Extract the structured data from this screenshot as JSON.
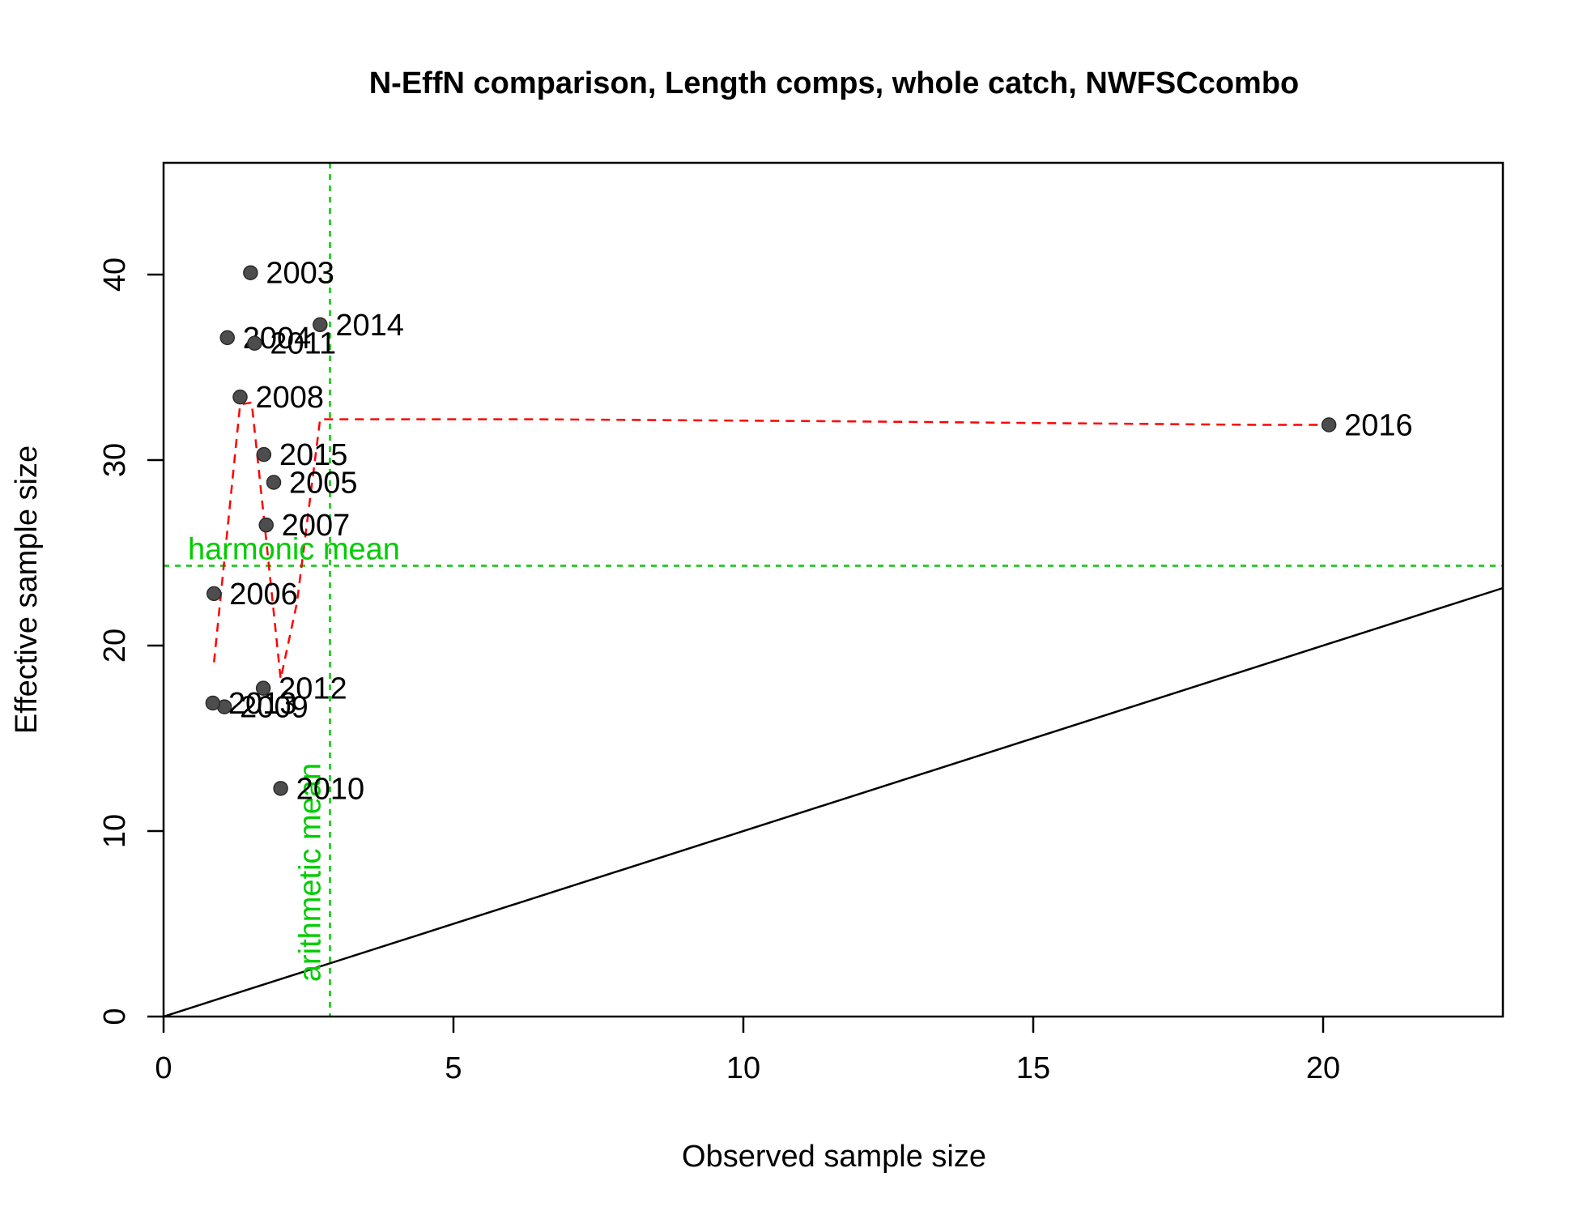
{
  "chart_data": {
    "type": "scatter",
    "title": "N-EffN comparison, Length comps, whole catch, NWFSCcombo",
    "xlabel": "Observed sample size",
    "ylabel": "Effective sample size",
    "xlim": [
      0,
      23.1
    ],
    "ylim": [
      0,
      46
    ],
    "xticks": [
      "0",
      "5",
      "10",
      "15",
      "20"
    ],
    "yticks": [
      "0",
      "10",
      "20",
      "30",
      "40"
    ],
    "points": [
      {
        "year": "2003",
        "x": 1.5,
        "y": 40.1
      },
      {
        "year": "2004",
        "x": 1.1,
        "y": 36.6
      },
      {
        "year": "2005",
        "x": 1.9,
        "y": 28.8
      },
      {
        "year": "2006",
        "x": 0.87,
        "y": 22.8
      },
      {
        "year": "2007",
        "x": 1.77,
        "y": 26.5
      },
      {
        "year": "2008",
        "x": 1.32,
        "y": 33.4
      },
      {
        "year": "2009",
        "x": 1.05,
        "y": 16.7
      },
      {
        "year": "2010",
        "x": 2.02,
        "y": 12.3
      },
      {
        "year": "2011",
        "x": 1.57,
        "y": 36.3
      },
      {
        "year": "2012",
        "x": 1.72,
        "y": 17.7
      },
      {
        "year": "2013",
        "x": 0.85,
        "y": 16.9
      },
      {
        "year": "2014",
        "x": 2.7,
        "y": 37.3
      },
      {
        "year": "2015",
        "x": 1.73,
        "y": 30.3
      },
      {
        "year": "2016",
        "x": 20.1,
        "y": 31.9
      }
    ],
    "smoother": [
      [
        0.87,
        19.1
      ],
      [
        1.32,
        33.0
      ],
      [
        1.52,
        33.1
      ],
      [
        1.75,
        26.3
      ],
      [
        2.02,
        18.2
      ],
      [
        2.3,
        22.3
      ],
      [
        2.7,
        32.2
      ],
      [
        6.3,
        32.2
      ],
      [
        11.3,
        32.1
      ],
      [
        18.8,
        31.9
      ],
      [
        20.1,
        31.9
      ]
    ],
    "harmonic_mean": {
      "label": "harmonic mean",
      "value": 24.3
    },
    "arithmetic_mean": {
      "label": "arithmetic mean",
      "value": 2.87
    },
    "reference_line": "1:1",
    "colors": {
      "points": "#4d4d4d",
      "smoother": "#ff0000",
      "means": "#00cc00"
    }
  }
}
